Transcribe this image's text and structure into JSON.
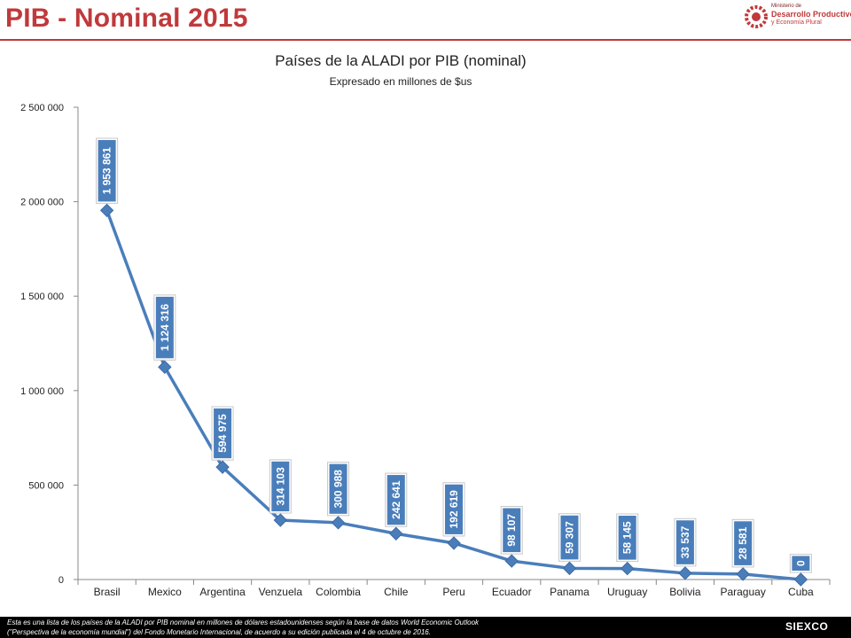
{
  "header": {
    "title": "PIB - Nominal 2015",
    "logo_lines": [
      "Ministerio de",
      "Desarrollo Productivo",
      "y Economía Plural"
    ]
  },
  "chart_data": {
    "type": "line",
    "title": "Países de la ALADI por PIB (nominal)",
    "subtitle": "Expresado en millones de $us",
    "categories": [
      "Brasil",
      "Mexico",
      "Argentina",
      "Venzuela",
      "Colombia",
      "Chile",
      "Peru",
      "Ecuador",
      "Panama",
      "Uruguay",
      "Bolivia",
      "Paraguay",
      "Cuba"
    ],
    "values": [
      1953861,
      1124316,
      594975,
      314103,
      300988,
      242641,
      192619,
      98107,
      59307,
      58145,
      33537,
      28581,
      0
    ],
    "data_labels": [
      "1 953 861",
      "1 124 316",
      "594 975",
      "314 103",
      "300 988",
      "242 641",
      "192 619",
      "98 107",
      "59 307",
      "58 145",
      "33 537",
      "28 581",
      "0"
    ],
    "y_ticks": [
      0,
      500000,
      1000000,
      1500000,
      2000000,
      2500000
    ],
    "y_tick_labels": [
      "0",
      "500 000",
      "1 000 000",
      "1 500 000",
      "2 000 000",
      "2 500 000"
    ],
    "ylim": [
      0,
      2500000
    ],
    "grid": false,
    "legend": "none",
    "colors": {
      "line": "#4a7ebb",
      "marker": "#4a7ebb",
      "label_bg": "#4a7ebb",
      "title_accent": "#c0393b"
    }
  },
  "footer": {
    "line1": "Esta es una lista de los países de la ALADI por PIB nominal en millones de dólares estadounidenses según la base de datos World Economic Outlook",
    "line2": "(\"Perspectiva de la economía mundial\") del Fondo Monetario Internacional, de acuerdo a su edición publicada el 4 de octubre de 2016.",
    "logo_text": "SIEXCO"
  }
}
